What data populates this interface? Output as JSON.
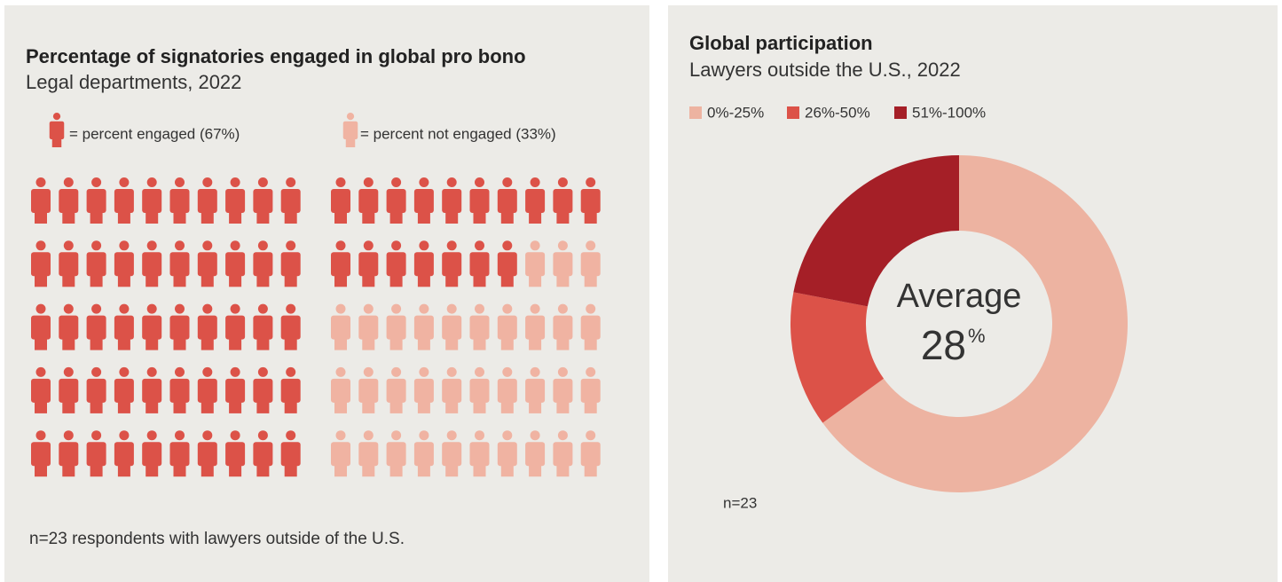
{
  "chart_data": [
    {
      "type": "pictograph",
      "title": "Percentage of signatories engaged in global pro bono",
      "subtitle": "Legal departments, 2022",
      "series": [
        {
          "name": "= percent engaged (67%)",
          "color": "#dc5248"
        },
        {
          "name": "= percent not engaged (33%)",
          "color": "#f0b3a2"
        }
      ],
      "values": [
        67,
        33
      ],
      "note": "n=23 respondents with lawyers outside of the U.S."
    },
    {
      "type": "donut",
      "title": "Global participation",
      "subtitle": "Lawyers outside the U.S., 2022",
      "categories": [
        "0%-25%",
        "26%-50%",
        "51%-100%"
      ],
      "values": [
        65,
        13,
        22
      ],
      "colors": [
        "#edb3a1",
        "#dc5248",
        "#a51f27"
      ],
      "center_label": "Average",
      "center_value": 28,
      "center_unit": "%",
      "note": "n=23"
    }
  ]
}
